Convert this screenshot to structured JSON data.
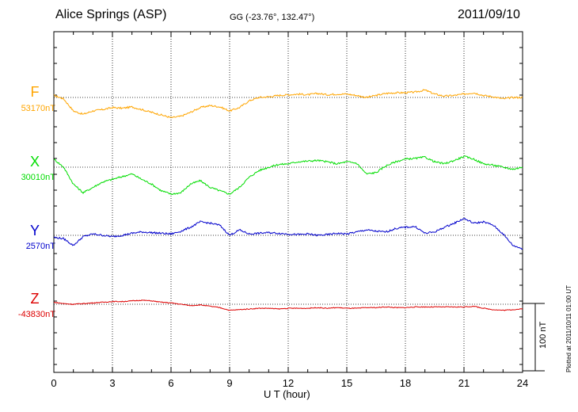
{
  "header": {
    "title": "Alice Springs (ASP)",
    "coords": "GG (-23.76°, 132.47°)",
    "date": "2011/09/10"
  },
  "footer": {
    "xlabel": "U T (hour)",
    "plotted_note": "Plotted at 2011/10/11 01:00 UT"
  },
  "scale": {
    "label": "100 nT",
    "value_nT": 100
  },
  "colors": {
    "F": "#ffa500",
    "X": "#00dd00",
    "Y": "#0000cc",
    "Z": "#dd0000"
  },
  "chart_data": {
    "type": "line",
    "title": "Alice Springs (ASP)",
    "xlabel": "U T (hour)",
    "ylabel": "",
    "xlim": [
      0,
      24
    ],
    "xticks": [
      0,
      3,
      6,
      9,
      12,
      15,
      18,
      21,
      24
    ],
    "grid": true,
    "x": [
      0,
      0.5,
      1,
      1.5,
      2,
      2.5,
      3,
      3.5,
      4,
      4.5,
      5,
      5.5,
      6,
      6.5,
      7,
      7.5,
      8,
      8.5,
      9,
      9.5,
      10,
      10.5,
      11,
      11.5,
      12,
      12.5,
      13,
      13.5,
      14,
      14.5,
      15,
      15.5,
      16,
      16.5,
      17,
      17.5,
      18,
      18.5,
      19,
      19.5,
      20,
      20.5,
      21,
      21.5,
      22,
      22.5,
      23,
      23.5,
      24
    ],
    "series": [
      {
        "name": "F",
        "baseline": "53170nT",
        "values": [
          3,
          -2,
          -20,
          -25,
          -20,
          -18,
          -15,
          -16,
          -14,
          -18,
          -22,
          -26,
          -30,
          -28,
          -22,
          -15,
          -12,
          -14,
          -20,
          -15,
          -5,
          0,
          1,
          3,
          4,
          5,
          4,
          6,
          4,
          5,
          5,
          3,
          0,
          3,
          6,
          7,
          7,
          8,
          11,
          5,
          2,
          3,
          5,
          7,
          3,
          1,
          -2,
          0,
          0
        ]
      },
      {
        "name": "X",
        "baseline": "30010nT",
        "values": [
          12,
          0,
          -25,
          -38,
          -30,
          -22,
          -18,
          -14,
          -10,
          -18,
          -25,
          -35,
          -40,
          -38,
          -25,
          -20,
          -30,
          -35,
          -40,
          -30,
          -15,
          -5,
          0,
          4,
          5,
          8,
          9,
          10,
          8,
          5,
          8,
          6,
          -10,
          -8,
          2,
          8,
          12,
          13,
          15,
          8,
          5,
          10,
          16,
          12,
          5,
          3,
          0,
          -3,
          0
        ]
      },
      {
        "name": "Y",
        "baseline": "2570nT",
        "values": [
          -3,
          -5,
          -15,
          -2,
          2,
          0,
          -2,
          0,
          3,
          5,
          4,
          3,
          2,
          6,
          12,
          20,
          18,
          15,
          0,
          8,
          2,
          3,
          4,
          3,
          2,
          1,
          2,
          0,
          1,
          3,
          2,
          5,
          8,
          6,
          5,
          10,
          12,
          13,
          3,
          5,
          12,
          18,
          25,
          18,
          20,
          15,
          2,
          -15,
          -20
        ]
      },
      {
        "name": "Z",
        "baseline": "-43830nT",
        "values": [
          3,
          1,
          0,
          1,
          2,
          3,
          4,
          4,
          5,
          6,
          5,
          3,
          2,
          0,
          -2,
          -1,
          -3,
          -5,
          -9,
          -8,
          -7,
          -6,
          -6,
          -7,
          -6,
          -6,
          -6,
          -5,
          -6,
          -5,
          -6,
          -6,
          -5,
          -5,
          -4,
          -5,
          -5,
          -4,
          -4,
          -4,
          -4,
          -4,
          -4,
          -3,
          -6,
          -8,
          -9,
          -8,
          -7
        ]
      }
    ]
  }
}
